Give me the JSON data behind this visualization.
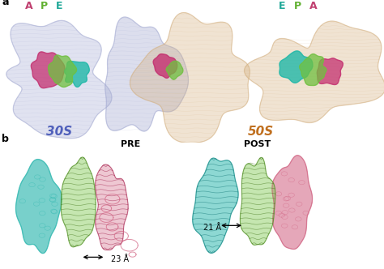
{
  "panel_a_label": "a",
  "panel_b_label": "b",
  "label_30S": "30S",
  "label_50S": "50S",
  "label_PRE": "PRE",
  "label_POST": "POST",
  "label_23A": "23 Å",
  "label_21A": "21 Å",
  "color_blue_ribo": "#a8aed4",
  "color_blue_ribo_dark": "#7080bb",
  "color_orange_ribo": "#d4b080",
  "color_orange_ribo_dark": "#c8882a",
  "color_A_site": "#c43070",
  "color_P_site": "#70c040",
  "color_E_site": "#20b8a8",
  "color_teal": "#30b8b0",
  "color_green_trna": "#80c850",
  "color_pink_trna": "#d06080",
  "label_A_color": "#c04070",
  "label_P_color": "#60b030",
  "label_E_color": "#20a898",
  "label_30S_color": "#5060bb",
  "label_50S_color": "#c07020",
  "bg_color": "#ffffff"
}
